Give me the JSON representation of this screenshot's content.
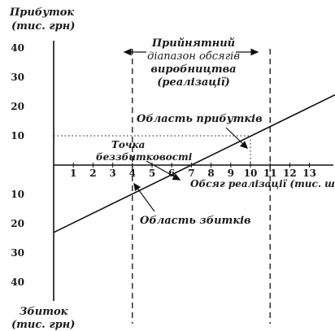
{
  "chart_data": {
    "type": "line",
    "title": "",
    "ylabel_top": [
      "Прибуток",
      "(тис. грн)"
    ],
    "ylabel_bottom": [
      "Збиток",
      "(тис. грн)"
    ],
    "xlabel": "Обсяг реалізації (тис. шт.)",
    "x_ticks": [
      "1",
      "2",
      "3",
      "4",
      "5",
      "6",
      "7",
      "8",
      "9",
      "10",
      "11",
      "12",
      "13"
    ],
    "y_ticks_up": [
      "40",
      "30",
      "20",
      "10"
    ],
    "y_ticks_down": [
      "10",
      "20",
      "30",
      "40"
    ],
    "xlim": [
      0,
      14.3
    ],
    "ylim": [
      -45,
      45
    ],
    "series": [
      {
        "x": [
          0,
          14.3
        ],
        "y": [
          -23,
          24
        ]
      }
    ],
    "guides": {
      "range_lines_x": [
        4,
        11
      ],
      "target_point": {
        "x": 10,
        "y": 10
      }
    },
    "annotations": {
      "range_label": [
        "Прийнятний",
        "діапазон обсягів",
        "виробництва",
        "(реалізації)"
      ],
      "profit_area": "Область прибутків",
      "breakeven": [
        "Точка",
        "беззбитковості"
      ],
      "loss_area": "Область збитків"
    }
  }
}
